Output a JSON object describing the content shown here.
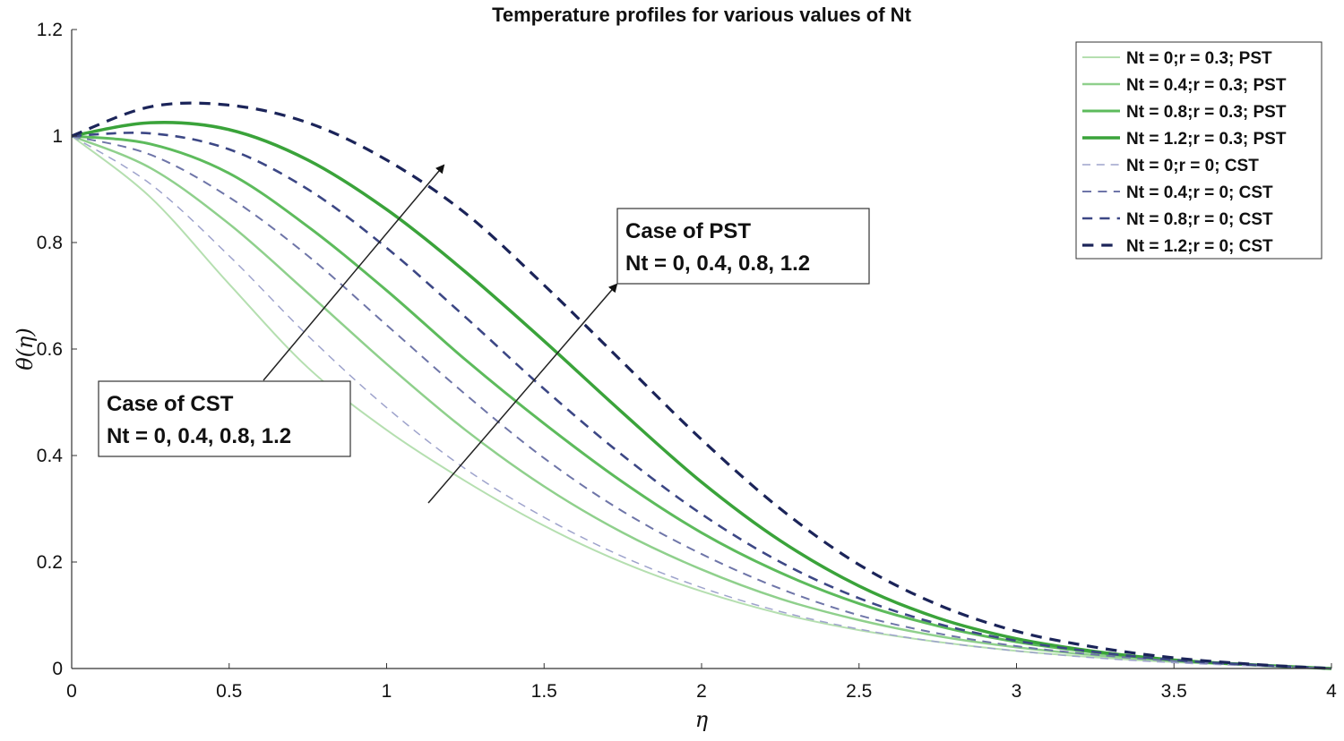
{
  "chart_data": {
    "type": "line",
    "title": "Temperature profiles for various values of Nt",
    "xlabel": "η",
    "ylabel": "θ(η)",
    "xlim": [
      0,
      4
    ],
    "ylim": [
      0,
      1.2
    ],
    "xticks": [
      "0",
      "0.5",
      "1",
      "1.5",
      "2",
      "2.5",
      "3",
      "3.5",
      "4"
    ],
    "yticks": [
      "0",
      "0.2",
      "0.4",
      "0.6",
      "0.8",
      "1",
      "1.2"
    ],
    "legend_position": "top-right",
    "series": [
      {
        "name": "Nt = 0;r = 0.3; PST",
        "style": "solid",
        "color": "#b5dfb0",
        "x": [
          0,
          0.25,
          0.5,
          0.75,
          1.0,
          1.25,
          1.5,
          1.75,
          2.0,
          2.25,
          2.5,
          2.75,
          3.0,
          3.25,
          3.5,
          3.75,
          4.0
        ],
        "y": [
          1.0,
          0.885,
          0.722,
          0.565,
          0.448,
          0.352,
          0.268,
          0.199,
          0.145,
          0.103,
          0.072,
          0.05,
          0.033,
          0.021,
          0.012,
          0.006,
          0.0
        ]
      },
      {
        "name": "Nt = 0.4;r = 0.3; PST",
        "style": "solid",
        "color": "#8fd08c",
        "x": [
          0,
          0.25,
          0.5,
          0.75,
          1.0,
          1.25,
          1.5,
          1.75,
          2.0,
          2.25,
          2.5,
          2.75,
          3.0,
          3.25,
          3.5,
          3.75,
          4.0
        ],
        "y": [
          1.0,
          0.94,
          0.835,
          0.705,
          0.572,
          0.448,
          0.342,
          0.255,
          0.186,
          0.131,
          0.091,
          0.061,
          0.04,
          0.025,
          0.014,
          0.006,
          0.0
        ]
      },
      {
        "name": "Nt = 0.8;r = 0.3; PST",
        "style": "solid",
        "color": "#5dbb5c",
        "x": [
          0,
          0.25,
          0.5,
          0.75,
          1.0,
          1.25,
          1.5,
          1.75,
          2.0,
          2.25,
          2.5,
          2.75,
          3.0,
          3.25,
          3.5,
          3.75,
          4.0
        ],
        "y": [
          1.0,
          0.985,
          0.93,
          0.83,
          0.71,
          0.58,
          0.46,
          0.35,
          0.255,
          0.18,
          0.122,
          0.08,
          0.05,
          0.03,
          0.016,
          0.007,
          0.0
        ]
      },
      {
        "name": "Nt = 1.2;r = 0.3; PST",
        "style": "solid",
        "color": "#3aa33a",
        "x": [
          0,
          0.25,
          0.5,
          0.75,
          1.0,
          1.25,
          1.5,
          1.75,
          2.0,
          2.25,
          2.5,
          2.75,
          3.0,
          3.25,
          3.5,
          3.75,
          4.0
        ],
        "y": [
          1.0,
          1.025,
          1.012,
          0.955,
          0.862,
          0.745,
          0.615,
          0.48,
          0.35,
          0.24,
          0.155,
          0.095,
          0.056,
          0.032,
          0.016,
          0.007,
          0.0
        ]
      },
      {
        "name": "Nt = 0;r = 0; CST",
        "style": "dashed",
        "color": "#9ea3cc",
        "x": [
          0,
          0.25,
          0.5,
          0.75,
          1.0,
          1.25,
          1.5,
          1.75,
          2.0,
          2.25,
          2.5,
          2.75,
          3.0,
          3.25,
          3.5,
          3.75,
          4.0
        ],
        "y": [
          1.0,
          0.91,
          0.775,
          0.625,
          0.49,
          0.375,
          0.284,
          0.21,
          0.152,
          0.107,
          0.074,
          0.05,
          0.033,
          0.02,
          0.011,
          0.005,
          0.0
        ]
      },
      {
        "name": "Nt = 0.4;r = 0; CST",
        "style": "dashed",
        "color": "#6e75a8",
        "x": [
          0,
          0.25,
          0.5,
          0.75,
          1.0,
          1.25,
          1.5,
          1.75,
          2.0,
          2.25,
          2.5,
          2.75,
          3.0,
          3.25,
          3.5,
          3.75,
          4.0
        ],
        "y": [
          1.0,
          0.965,
          0.885,
          0.775,
          0.645,
          0.515,
          0.395,
          0.295,
          0.215,
          0.15,
          0.1,
          0.066,
          0.042,
          0.026,
          0.014,
          0.006,
          0.0
        ]
      },
      {
        "name": "Nt = 0.8;r = 0; CST",
        "style": "dashed",
        "color": "#3c4785",
        "x": [
          0,
          0.25,
          0.5,
          0.75,
          1.0,
          1.25,
          1.5,
          1.75,
          2.0,
          2.25,
          2.5,
          2.75,
          3.0,
          3.25,
          3.5,
          3.75,
          4.0
        ],
        "y": [
          1.0,
          1.005,
          0.975,
          0.9,
          0.79,
          0.66,
          0.525,
          0.4,
          0.29,
          0.2,
          0.132,
          0.084,
          0.052,
          0.031,
          0.016,
          0.007,
          0.0
        ]
      },
      {
        "name": "Nt = 1.2;r = 0; CST",
        "style": "dashed",
        "color": "#1b2459",
        "x": [
          0,
          0.25,
          0.5,
          0.75,
          1.0,
          1.25,
          1.5,
          1.75,
          2.0,
          2.25,
          2.5,
          2.75,
          3.0,
          3.25,
          3.5,
          3.75,
          4.0
        ],
        "y": [
          1.0,
          1.055,
          1.058,
          1.025,
          0.955,
          0.855,
          0.72,
          0.575,
          0.43,
          0.3,
          0.195,
          0.12,
          0.07,
          0.04,
          0.02,
          0.008,
          0.0
        ]
      }
    ],
    "annotations": [
      {
        "label": "annotation-pst",
        "lines": [
          "Case of PST",
          "Nt = 0, 0.4, 0.8, 1.2"
        ]
      },
      {
        "label": "annotation-cst",
        "lines": [
          "Case of CST",
          "Nt = 0, 0.4, 0.8, 1.2"
        ]
      }
    ]
  }
}
